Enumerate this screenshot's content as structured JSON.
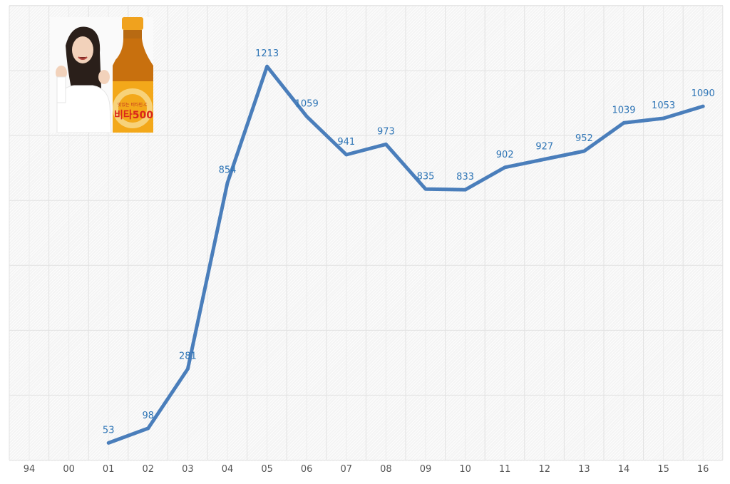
{
  "chart_data": {
    "type": "line",
    "title": "",
    "xlabel": "",
    "ylabel": "",
    "categories": [
      "94",
      "00",
      "01",
      "02",
      "03",
      "04",
      "05",
      "06",
      "07",
      "08",
      "09",
      "10",
      "11",
      "12",
      "13",
      "14",
      "15",
      "16"
    ],
    "series": [
      {
        "name": "Vita 500",
        "values": [
          null,
          null,
          53,
          98,
          281,
          854,
          1213,
          1059,
          941,
          973,
          835,
          833,
          902,
          927,
          952,
          1039,
          1053,
          1090
        ],
        "data_labels": [
          "",
          "",
          "53",
          "98",
          "281",
          "854",
          "1213",
          "1059",
          "941",
          "973",
          "835",
          "833",
          "902",
          "927",
          "952",
          "1039",
          "1053",
          "1090"
        ],
        "color": "#4a7ebb"
      }
    ],
    "ylim": [
      0,
      1400
    ],
    "y_gridlines": [
      0,
      200,
      400,
      600,
      800,
      1000,
      1200,
      1400
    ],
    "grid": true,
    "legend": "none",
    "y_tick_labels_visible": false
  },
  "image": {
    "description": "product advertisement: woman with raised fists next to a Vita 500 bottle",
    "bottle_label": "비타500",
    "bottle_subtext": "맛있는 비타민-C"
  },
  "colors": {
    "line": "#4a7ebb",
    "data_label": "#2e75b6",
    "axis_label": "#555555",
    "plot_background": "#f4f4f4",
    "gridline": "#e2e2e2",
    "bottle_orange": "#f0a21e",
    "bottle_brown": "#a8540c",
    "bottle_red_text": "#d9261c"
  }
}
